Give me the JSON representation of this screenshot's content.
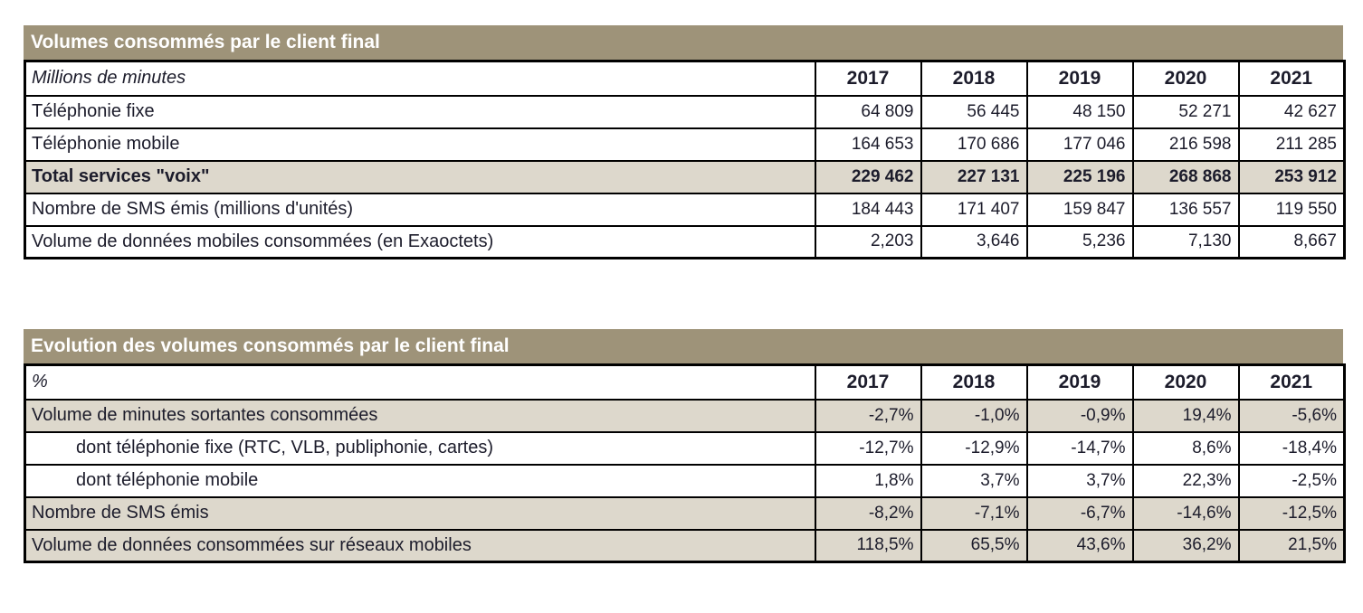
{
  "colors": {
    "title_band": "#9E9379",
    "shaded_row": "#DDD8CC",
    "text": "#1C1C2B",
    "border": "#000000"
  },
  "table1": {
    "title": "Volumes consommés par le client final",
    "unit_label": "Millions de minutes",
    "years": [
      "2017",
      "2018",
      "2019",
      "2020",
      "2021"
    ],
    "rows": [
      {
        "label": "Téléphonie fixe",
        "style": "normal",
        "values": [
          "64 809",
          "56 445",
          "48 150",
          "52 271",
          "42 627"
        ]
      },
      {
        "label": "Téléphonie mobile",
        "style": "normal",
        "values": [
          "164 653",
          "170 686",
          "177 046",
          "216 598",
          "211 285"
        ]
      },
      {
        "label": "Total services \"voix\"",
        "style": "total",
        "values": [
          "229 462",
          "227 131",
          "225 196",
          "268 868",
          "253 912"
        ]
      },
      {
        "label": "Nombre de SMS émis (millions d'unités)",
        "style": "normal",
        "values": [
          "184 443",
          "171 407",
          "159 847",
          "136 557",
          "119 550"
        ]
      },
      {
        "label": "Volume de données mobiles consommées (en Exaoctets)",
        "style": "normal",
        "values": [
          "2,203",
          "3,646",
          "5,236",
          "7,130",
          "8,667"
        ]
      }
    ]
  },
  "table2": {
    "title": "Evolution des volumes consommés par le client final",
    "unit_label": "%",
    "years": [
      "2017",
      "2018",
      "2019",
      "2020",
      "2021"
    ],
    "rows": [
      {
        "label": "Volume de minutes sortantes consommées",
        "style": "shaded",
        "values": [
          "-2,7%",
          "-1,0%",
          "-0,9%",
          "19,4%",
          "-5,6%"
        ]
      },
      {
        "label": "dont téléphonie fixe (RTC, VLB, publiphonie, cartes)",
        "style": "indent",
        "values": [
          "-12,7%",
          "-12,9%",
          "-14,7%",
          "8,6%",
          "-18,4%"
        ]
      },
      {
        "label": "dont téléphonie mobile",
        "style": "indent",
        "values": [
          "1,8%",
          "3,7%",
          "3,7%",
          "22,3%",
          "-2,5%"
        ]
      },
      {
        "label": "Nombre de SMS émis",
        "style": "shaded",
        "values": [
          "-8,2%",
          "-7,1%",
          "-6,7%",
          "-14,6%",
          "-12,5%"
        ]
      },
      {
        "label": "Volume de données consommées sur réseaux mobiles",
        "style": "shaded",
        "values": [
          "118,5%",
          "65,5%",
          "43,6%",
          "36,2%",
          "21,5%"
        ]
      }
    ]
  }
}
